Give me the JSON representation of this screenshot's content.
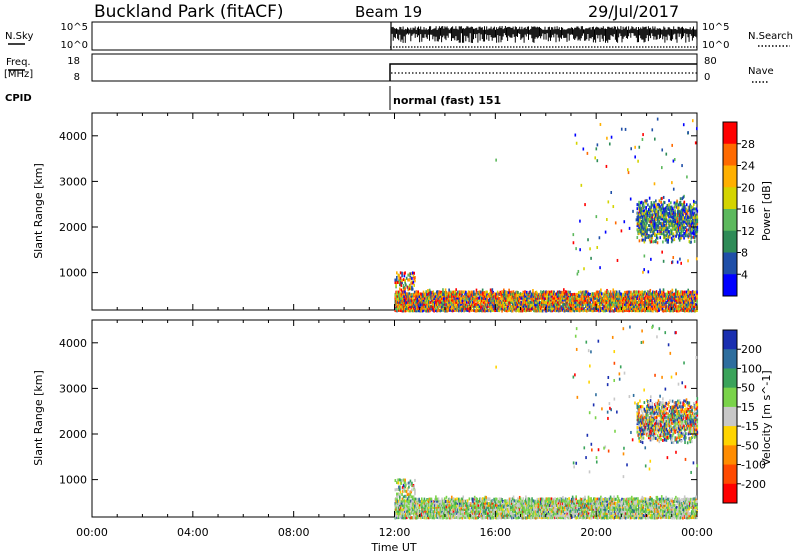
{
  "header": {
    "station": "Buckland Park (fitACF)",
    "beam": "Beam 19",
    "date": "29/Jul/2017"
  },
  "status_panels": {
    "nsky_label": "N.Sky",
    "nsky_ticks": [
      "10^5",
      "10^0"
    ],
    "nsearch_label": "N.Search",
    "freq_label_1": "Freq.",
    "freq_label_2": "[MHz]",
    "freq_ticks": [
      "18",
      "8"
    ],
    "nave_ticks": [
      "80",
      "0"
    ],
    "nave_label": "Nave",
    "cpid_label": "CPID",
    "cpid_value": "normal (fast) 151",
    "data_start": "12:00"
  },
  "chart_data": [
    {
      "type": "heatmap",
      "panel": "power",
      "ylabel": "Slant Range [km]",
      "xlabel": "Time UT",
      "x_ticks": [
        "00:00",
        "04:00",
        "08:00",
        "12:00",
        "16:00",
        "20:00",
        "00:00"
      ],
      "y_ticks": [
        1000,
        2000,
        3000,
        4000
      ],
      "ylim": [
        180,
        4500
      ],
      "colorbar_label": "Power [dB]",
      "colorbar_ticks": [
        4,
        8,
        12,
        16,
        20,
        24,
        28
      ],
      "colorbar_colors": [
        "#0000ff",
        "#1f4fa8",
        "#2e8b57",
        "#5cb85c",
        "#d4d400",
        "#ffb000",
        "#ff6a00",
        "#ff0000"
      ],
      "regions": [
        {
          "name": "ground scatter",
          "x": [
            12.0,
            24.0
          ],
          "y": [
            180,
            650
          ],
          "level": "high"
        },
        {
          "name": "near-range patch",
          "x": [
            12.0,
            12.8
          ],
          "y": [
            650,
            1050
          ],
          "level": "mid"
        },
        {
          "name": "ionospheric echoes",
          "x": [
            21.6,
            24.0
          ],
          "y": [
            1600,
            2600
          ],
          "level": "low-mid"
        }
      ]
    },
    {
      "type": "heatmap",
      "panel": "velocity",
      "ylabel": "Slant Range [km]",
      "xlabel": "Time UT",
      "x_ticks": [
        "00:00",
        "04:00",
        "08:00",
        "12:00",
        "16:00",
        "20:00",
        "00:00"
      ],
      "y_ticks": [
        1000,
        2000,
        3000,
        4000
      ],
      "ylim": [
        180,
        4500
      ],
      "colorbar_label": "Velocity [m s^-1]",
      "colorbar_ticks": [
        200,
        100,
        50,
        15,
        -15,
        -50,
        -100,
        -200
      ],
      "colorbar_colors": [
        "#1a2fb0",
        "#2e6e9e",
        "#3aa35a",
        "#7ad34a",
        "#c8c8c8",
        "#ffd400",
        "#ff8c00",
        "#ff4a00",
        "#ff0000"
      ],
      "regions": [
        {
          "name": "ground scatter",
          "x": [
            12.0,
            24.0
          ],
          "y": [
            180,
            650
          ],
          "level": "near-zero"
        },
        {
          "name": "ionospheric echoes",
          "x": [
            21.6,
            24.0
          ],
          "y": [
            1700,
            2800
          ],
          "level": "mixed"
        }
      ]
    }
  ]
}
